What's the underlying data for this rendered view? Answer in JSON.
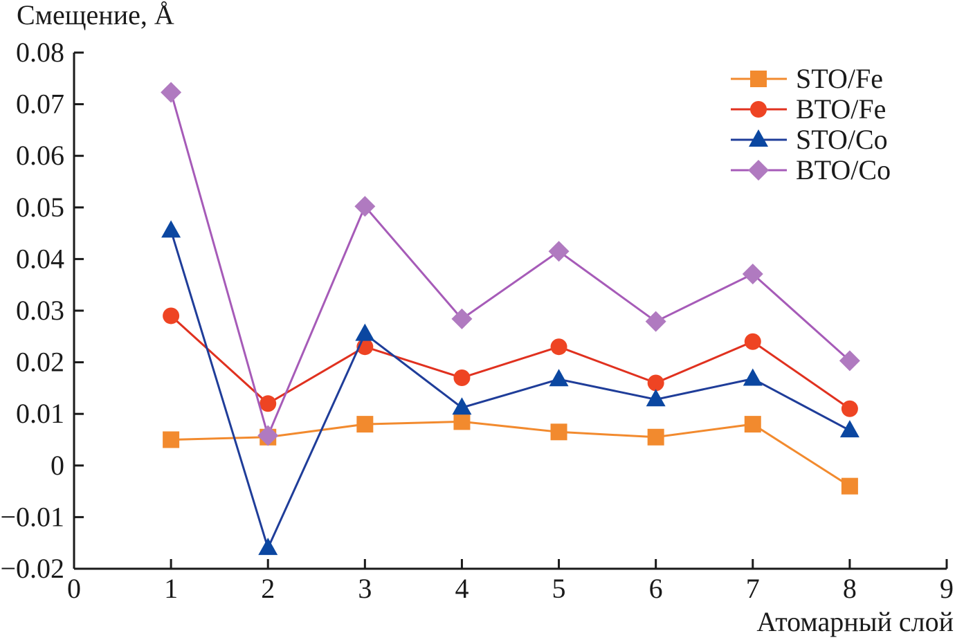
{
  "chart_data": {
    "type": "line",
    "title": "",
    "xlabel": "Атомарный слой",
    "ylabel": "Смещение, Å",
    "xlim": [
      0,
      9
    ],
    "ylim": [
      -0.02,
      0.08
    ],
    "grid": false,
    "legend_position": "top-right",
    "x_ticks": [
      0,
      1,
      2,
      3,
      4,
      5,
      6,
      7,
      8,
      9
    ],
    "x_tick_labels": [
      "0",
      "1",
      "2",
      "3",
      "4",
      "5",
      "6",
      "7",
      "8",
      "9"
    ],
    "y_ticks": [
      -0.02,
      -0.01,
      0,
      0.01,
      0.02,
      0.03,
      0.04,
      0.05,
      0.06,
      0.07,
      0.08
    ],
    "y_tick_labels": [
      "−0.02",
      "−0.01",
      "0",
      "0.01",
      "0.02",
      "0.03",
      "0.04",
      "0.05",
      "0.06",
      "0.07",
      "0.08"
    ],
    "x": [
      1,
      2,
      3,
      4,
      5,
      6,
      7,
      8
    ],
    "series": [
      {
        "name": "STO/Fe",
        "marker": "square",
        "color": "#f28a2e",
        "values": [
          0.005,
          0.0055,
          0.008,
          0.0085,
          0.0065,
          0.0055,
          0.008,
          -0.004
        ]
      },
      {
        "name": "BTO/Fe",
        "marker": "circle",
        "color": "#ee4423",
        "line_color": "#e0311f",
        "values": [
          0.029,
          0.012,
          0.023,
          0.017,
          0.023,
          0.016,
          0.024,
          0.011
        ]
      },
      {
        "name": "STO/Co",
        "marker": "triangle",
        "color": "#0b47a1",
        "line_color": "#1f3d99",
        "values": [
          0.0455,
          -0.016,
          0.0255,
          0.0112,
          0.0167,
          0.0128,
          0.0168,
          0.0068
        ]
      },
      {
        "name": "BTO/Co",
        "marker": "diamond",
        "color": "#b07ac0",
        "line_color": "#a65bb8",
        "values": [
          0.0723,
          0.0058,
          0.0502,
          0.0284,
          0.0415,
          0.0279,
          0.0371,
          0.0203
        ]
      }
    ]
  }
}
